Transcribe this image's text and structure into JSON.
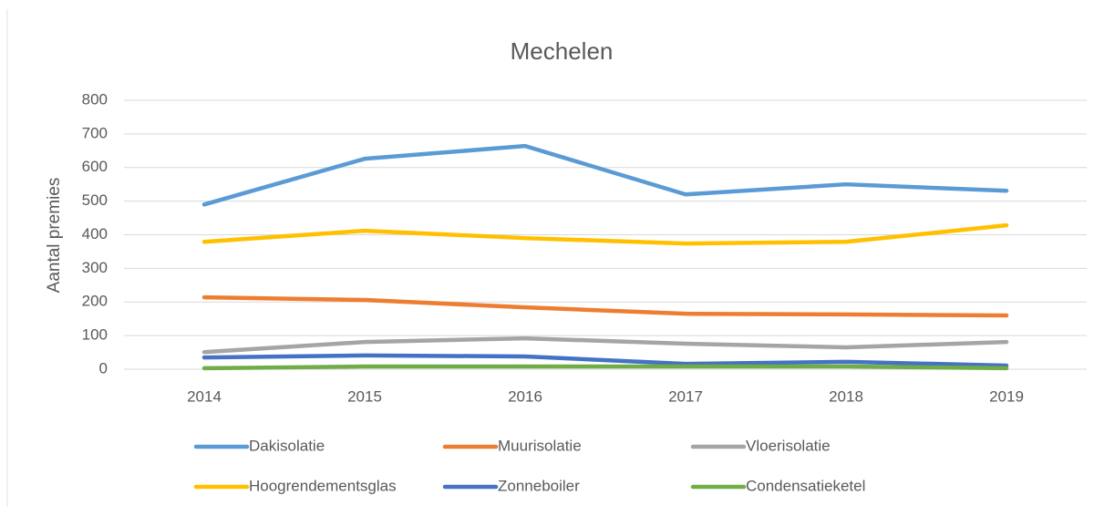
{
  "chart_data": {
    "type": "line",
    "title": "Mechelen",
    "y_label": "Aantal premies",
    "categories": [
      "2014",
      "2015",
      "2016",
      "2017",
      "2018",
      "2019"
    ],
    "series": [
      {
        "name": "Dakisolatie",
        "color": "#5b9bd5",
        "values": [
          490,
          626,
          664,
          520,
          550,
          531
        ]
      },
      {
        "name": "Muurisolatie",
        "color": "#ed7d31",
        "values": [
          214,
          206,
          184,
          165,
          163,
          160
        ]
      },
      {
        "name": "Vloerisolatie",
        "color": "#a5a5a5",
        "values": [
          51,
          81,
          92,
          76,
          65,
          81
        ]
      },
      {
        "name": "Hoogrendementsglas",
        "color": "#ffc000",
        "values": [
          379,
          412,
          390,
          374,
          379,
          428
        ]
      },
      {
        "name": "Zonneboiler",
        "color": "#4472c4",
        "values": [
          35,
          41,
          38,
          16,
          22,
          11
        ]
      },
      {
        "name": "Condensatieketel",
        "color": "#70ad47",
        "values": [
          3,
          8,
          8,
          8,
          8,
          3
        ]
      }
    ],
    "ylim": [
      0,
      800
    ],
    "yticks": [
      0,
      100,
      200,
      300,
      400,
      500,
      600,
      700,
      800
    ],
    "grid": true,
    "legend": "bottom"
  }
}
